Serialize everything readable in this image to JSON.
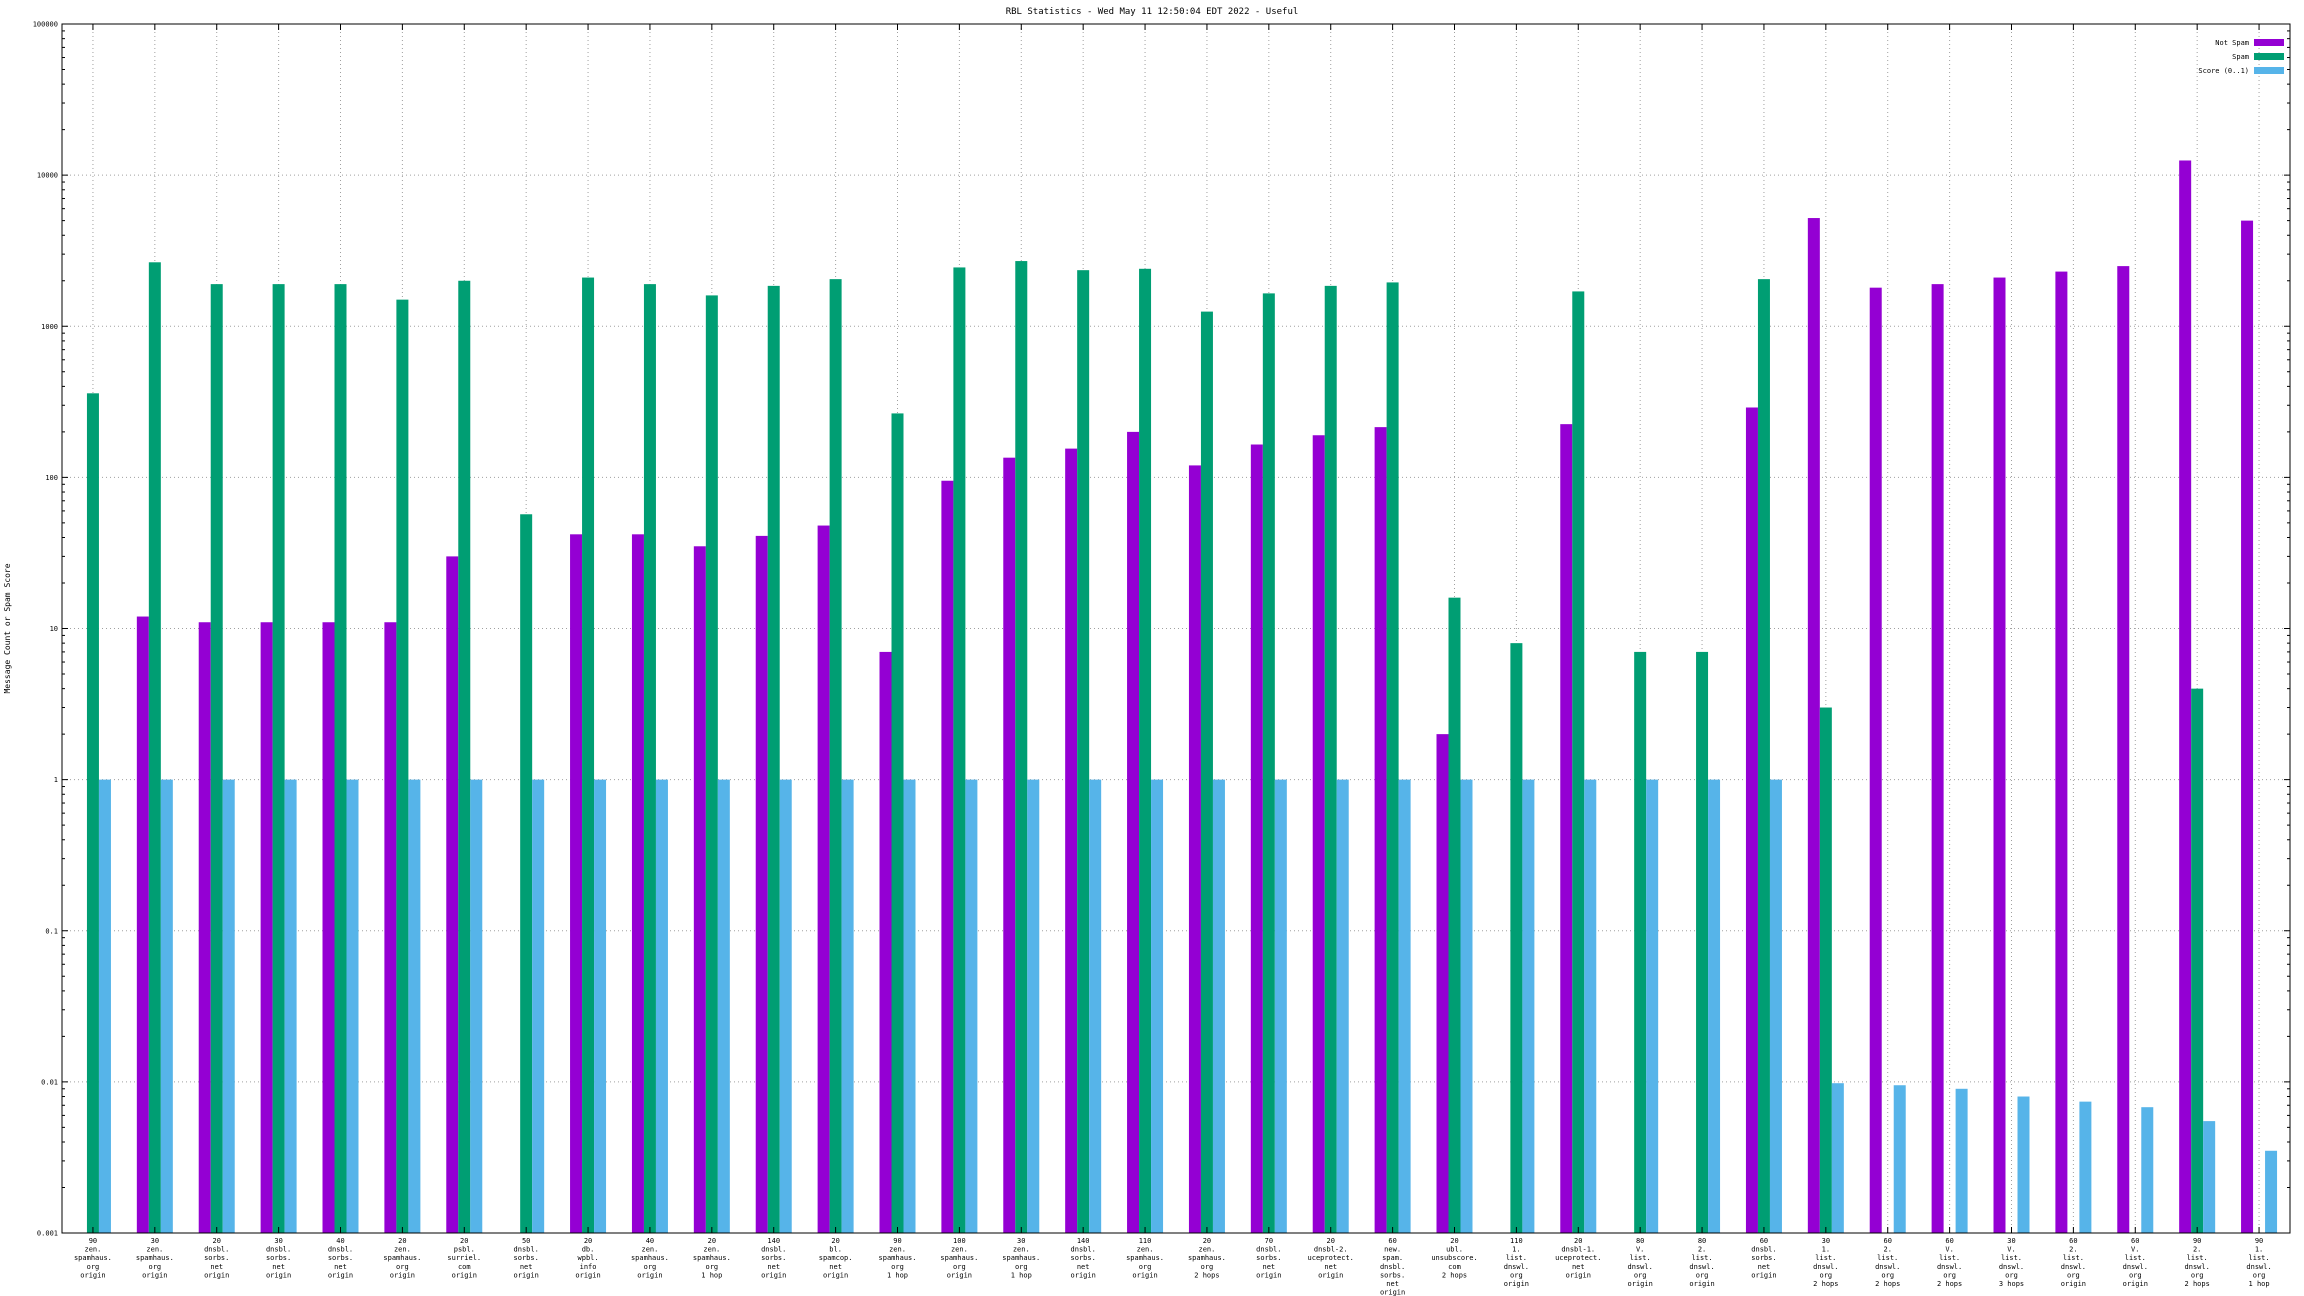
{
  "chart_data": {
    "type": "bar",
    "title": "RBL Statistics - Wed May 11 12:50:04 EDT 2022 - Useful",
    "ylabel": "Message Count or Spam Score",
    "xlabel": "",
    "y_scale": "log",
    "ylim": [
      0.001,
      100000
    ],
    "y_ticks": [
      "0.001",
      "0.01",
      "0.1",
      "1",
      "10",
      "100",
      "1000",
      "10000",
      "100000"
    ],
    "grid": true,
    "legend_position": "top-right",
    "categories": [
      "90\nzen.\nspamhaus.\norg\norigin",
      "30\nzen.\nspamhaus.\norg\norigin",
      "20\ndnsbl.\nsorbs.\nnet\norigin",
      "30\ndnsbl.\nsorbs.\nnet\norigin",
      "40\ndnsbl.\nsorbs.\nnet\norigin",
      "20\nzen.\nspamhaus.\norg\norigin",
      "20\npsbl.\nsurriel.\ncom\norigin",
      "50\ndnsbl.\nsorbs.\nnet\norigin",
      "20\ndb.\nwpbl.\ninfo\norigin",
      "40\nzen.\nspamhaus.\norg\norigin",
      "20\nzen.\nspamhaus.\norg\n1 hop",
      "140\ndnsbl.\nsorbs.\nnet\norigin",
      "20\nbl.\nspamcop.\nnet\norigin",
      "90\nzen.\nspamhaus.\norg\n1 hop",
      "100\nzen.\nspamhaus.\norg\norigin",
      "30\nzen.\nspamhaus.\norg\n1 hop",
      "140\ndnsbl.\nsorbs.\nnet\norigin",
      "110\nzen.\nspamhaus.\norg\norigin",
      "20\nzen.\nspamhaus.\norg\n2 hops",
      "70\ndnsbl.\nsorbs.\nnet\norigin",
      "20\ndnsbl-2.\nuceprotect.\nnet\norigin",
      "60\nnew.\nspam.\ndnsbl.\nsorbs.\nnet\norigin",
      "20\nubl.\nunsubscore.\ncom\n2 hops",
      "110\n1.\nlist.\ndnswl.\norg\norigin",
      "20\ndnsbl-1.\nuceprotect.\nnet\norigin",
      "80\nV.\nlist.\ndnswl.\norg\norigin",
      "80\n2.\nlist.\ndnswl.\norg\norigin",
      "60\ndnsbl.\nsorbs.\nnet\norigin",
      "30\n1.\nlist.\ndnswl.\norg\n2 hops",
      "60\n2.\nlist.\ndnswl.\norg\n2 hops",
      "60\nV.\nlist.\ndnswl.\norg\n2 hops",
      "30\nV.\nlist.\ndnswl.\norg\n3 hops",
      "60\n2.\nlist.\ndnswl.\norg\norigin",
      "60\nV.\nlist.\ndnswl.\norg\norigin",
      "90\n2.\nlist.\ndnswl.\norg\n2 hops",
      "90\n1.\nlist.\ndnswl.\norg\n1 hop"
    ],
    "series": [
      {
        "name": "Not Spam",
        "color": "#9400d3",
        "values": [
          0,
          12,
          11,
          11,
          11,
          11,
          30,
          0,
          42,
          42,
          35,
          41,
          48,
          7,
          95,
          135,
          155,
          200,
          120,
          165,
          190,
          215,
          2,
          0,
          225,
          0,
          0,
          290,
          5200,
          1800,
          1900,
          2100,
          2300,
          2500,
          12500,
          5000
        ]
      },
      {
        "name": "Spam",
        "color": "#009e73",
        "values": [
          360,
          2650,
          1900,
          1900,
          1900,
          1500,
          2000,
          57,
          2100,
          1900,
          1600,
          1850,
          2050,
          265,
          2450,
          2700,
          2350,
          2400,
          1250,
          1650,
          1850,
          1950,
          16,
          8,
          1700,
          7,
          7,
          2050,
          3,
          0,
          0,
          0,
          0,
          0,
          4,
          0
        ]
      },
      {
        "name": "Score (0..1)",
        "color": "#56b4e9",
        "values": [
          1,
          1,
          1,
          1,
          1,
          1,
          1,
          1,
          1,
          1,
          1,
          1,
          1,
          1,
          1,
          1,
          1,
          1,
          1,
          1,
          1,
          1,
          1,
          1,
          1,
          1,
          1,
          1,
          0.0098,
          0.0095,
          0.009,
          0.008,
          0.0074,
          0.0068,
          0.0055,
          0.0035
        ]
      }
    ]
  }
}
